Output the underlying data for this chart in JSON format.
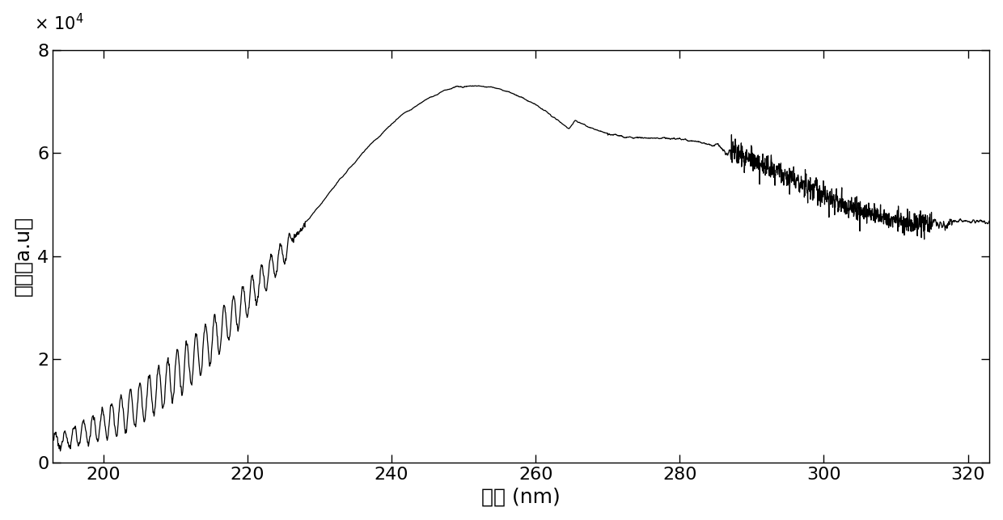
{
  "xlabel": "波长 (nm)",
  "ylabel": "光强（a.u）",
  "xlim": [
    193,
    323
  ],
  "ylim": [
    0,
    80000
  ],
  "yticks": [
    0,
    20000,
    40000,
    60000,
    80000
  ],
  "ytick_labels": [
    "0",
    "2",
    "4",
    "6",
    "8"
  ],
  "xticks": [
    200,
    220,
    240,
    260,
    280,
    300,
    320
  ],
  "line_color": "#000000",
  "background_color": "#ffffff",
  "font_size": 16,
  "label_font_size": 18
}
